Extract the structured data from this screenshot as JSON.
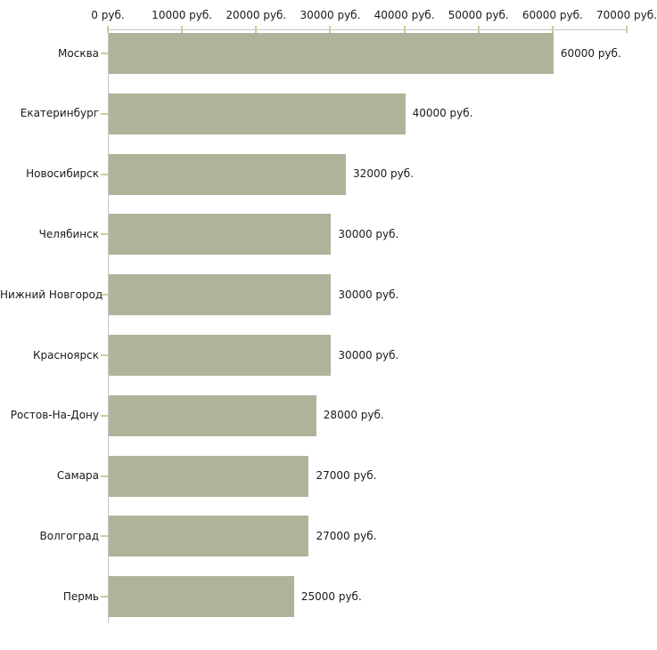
{
  "chart_data": {
    "type": "bar",
    "orientation": "horizontal",
    "title": "",
    "xlabel": "",
    "ylabel": "",
    "unit": "руб.",
    "categories": [
      "Москва",
      "Екатеринбург",
      "Новосибирск",
      "Челябинск",
      "Нижний Новгород",
      "Красноярск",
      "Ростов-На-Дону",
      "Самара",
      "Волгоград",
      "Пермь"
    ],
    "values": [
      60000,
      40000,
      32000,
      30000,
      30000,
      30000,
      28000,
      27000,
      27000,
      25000
    ],
    "value_labels": [
      "60000 руб.",
      "40000 руб.",
      "32000 руб.",
      "30000 руб.",
      "30000 руб.",
      "30000 руб.",
      "28000 руб.",
      "27000 руб.",
      "27000 руб.",
      "25000 руб."
    ],
    "xlim": [
      0,
      70000
    ],
    "x_ticks": [
      0,
      10000,
      20000,
      30000,
      40000,
      50000,
      60000,
      70000
    ],
    "x_tick_labels": [
      "0 руб.",
      "10000 руб.",
      "20000 руб.",
      "30000 руб.",
      "40000 руб.",
      "50000 руб.",
      "60000 руб.",
      "70000 руб."
    ],
    "grid": "off",
    "legend": "none",
    "tick_position": "top",
    "colors": {
      "bar_fill": "#aeb49a",
      "axis_line": "#c6c6c6",
      "tick_mark": "#cccc99",
      "text": "#1a1a1a",
      "background": "#ffffff"
    }
  }
}
